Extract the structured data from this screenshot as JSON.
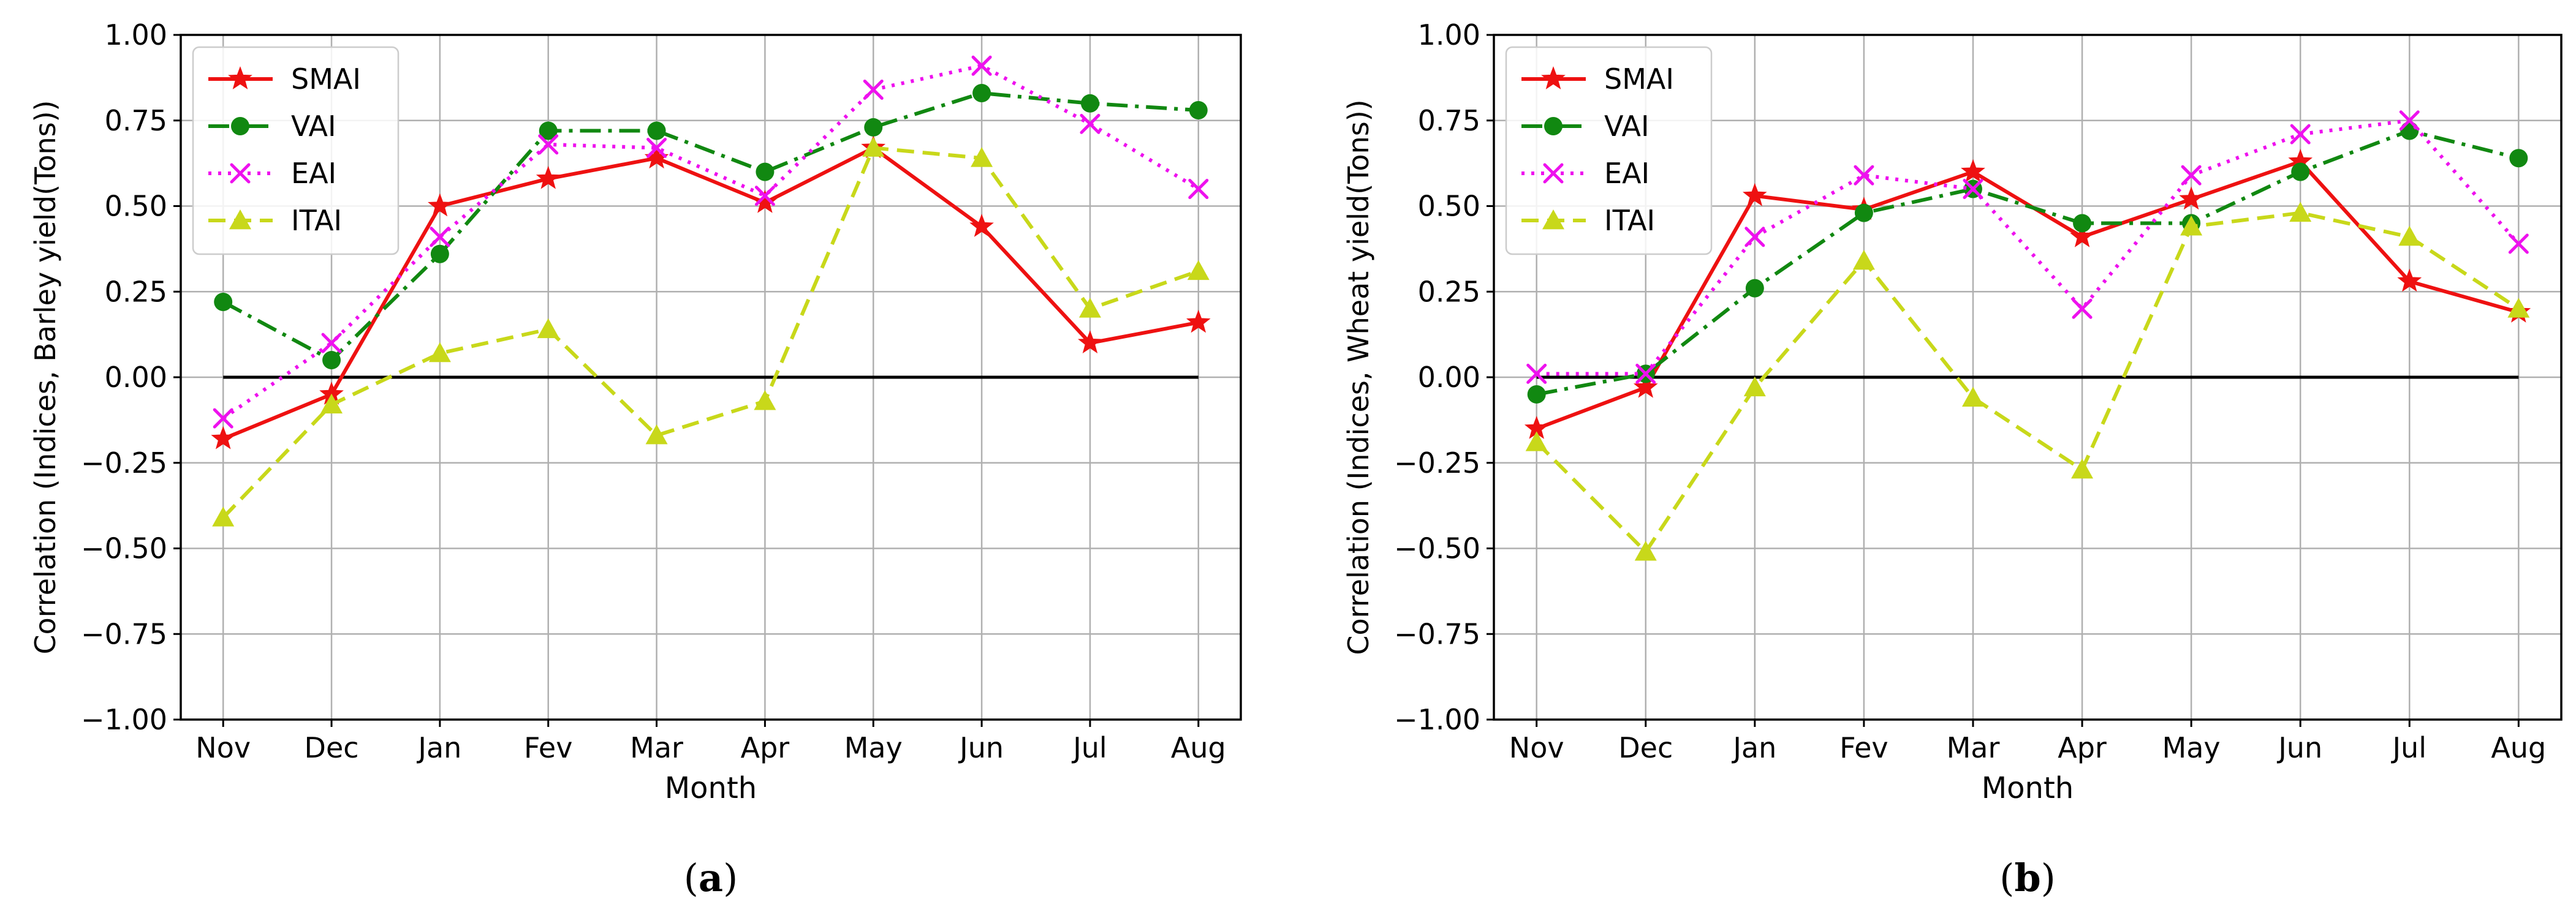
{
  "chart_data": [
    {
      "type": "line",
      "panel_label": "a",
      "xlabel": "Month",
      "ylabel": "Correlation (Indices, Barley yield(Tons))",
      "categories": [
        "Nov",
        "Dec",
        "Jan",
        "Fev",
        "Mar",
        "Apr",
        "May",
        "Jun",
        "Jul",
        "Aug"
      ],
      "ylim": [
        -1.0,
        1.0
      ],
      "yticks": [
        "−1.00",
        "−0.75",
        "−0.50",
        "−0.25",
        "0.00",
        "0.25",
        "0.50",
        "0.75",
        "1.00"
      ],
      "grid": true,
      "legend": "top-left",
      "zero_line": true,
      "series": [
        {
          "name": "SMAI",
          "color": "#ee1111",
          "style": "solid",
          "marker": "star",
          "values": [
            -0.18,
            -0.05,
            0.5,
            0.58,
            0.64,
            0.51,
            0.67,
            0.44,
            0.1,
            0.16
          ]
        },
        {
          "name": "VAI",
          "color": "#118811",
          "style": "dashdot",
          "marker": "circle",
          "values": [
            0.22,
            0.05,
            0.36,
            0.72,
            0.72,
            0.6,
            0.73,
            0.83,
            0.8,
            0.78
          ]
        },
        {
          "name": "EAI",
          "color": "#ee11ee",
          "style": "dotted",
          "marker": "x",
          "values": [
            -0.12,
            0.1,
            0.41,
            0.68,
            0.67,
            0.53,
            0.84,
            0.91,
            0.74,
            0.55
          ]
        },
        {
          "name": "ITAI",
          "color": "#c8d81a",
          "style": "dashed",
          "marker": "triangle",
          "values": [
            -0.41,
            -0.08,
            0.07,
            0.14,
            -0.17,
            -0.07,
            0.67,
            0.64,
            0.2,
            0.31
          ]
        }
      ]
    },
    {
      "type": "line",
      "panel_label": "b",
      "xlabel": "Month",
      "ylabel": "Correlation (Indices, Wheat yield(Tons))",
      "categories": [
        "Nov",
        "Dec",
        "Jan",
        "Fev",
        "Mar",
        "Apr",
        "May",
        "Jun",
        "Jul",
        "Aug"
      ],
      "ylim": [
        -1.0,
        1.0
      ],
      "yticks": [
        "−1.00",
        "−0.75",
        "−0.50",
        "−0.25",
        "0.00",
        "0.25",
        "0.50",
        "0.75",
        "1.00"
      ],
      "grid": true,
      "legend": "top-left",
      "zero_line": true,
      "series": [
        {
          "name": "SMAI",
          "color": "#ee1111",
          "style": "solid",
          "marker": "star",
          "values": [
            -0.15,
            -0.03,
            0.53,
            0.49,
            0.6,
            0.41,
            0.52,
            0.63,
            0.28,
            0.19
          ]
        },
        {
          "name": "VAI",
          "color": "#118811",
          "style": "dashdot",
          "marker": "circle",
          "values": [
            -0.05,
            0.01,
            0.26,
            0.48,
            0.55,
            0.45,
            0.45,
            0.6,
            0.72,
            0.64
          ]
        },
        {
          "name": "EAI",
          "color": "#ee11ee",
          "style": "dotted",
          "marker": "x",
          "values": [
            0.01,
            0.01,
            0.41,
            0.59,
            0.55,
            0.2,
            0.59,
            0.71,
            0.75,
            0.39
          ]
        },
        {
          "name": "ITAI",
          "color": "#c8d81a",
          "style": "dashed",
          "marker": "triangle",
          "values": [
            -0.19,
            -0.51,
            -0.03,
            0.34,
            -0.06,
            -0.27,
            0.44,
            0.48,
            0.41,
            0.2
          ]
        }
      ]
    }
  ]
}
